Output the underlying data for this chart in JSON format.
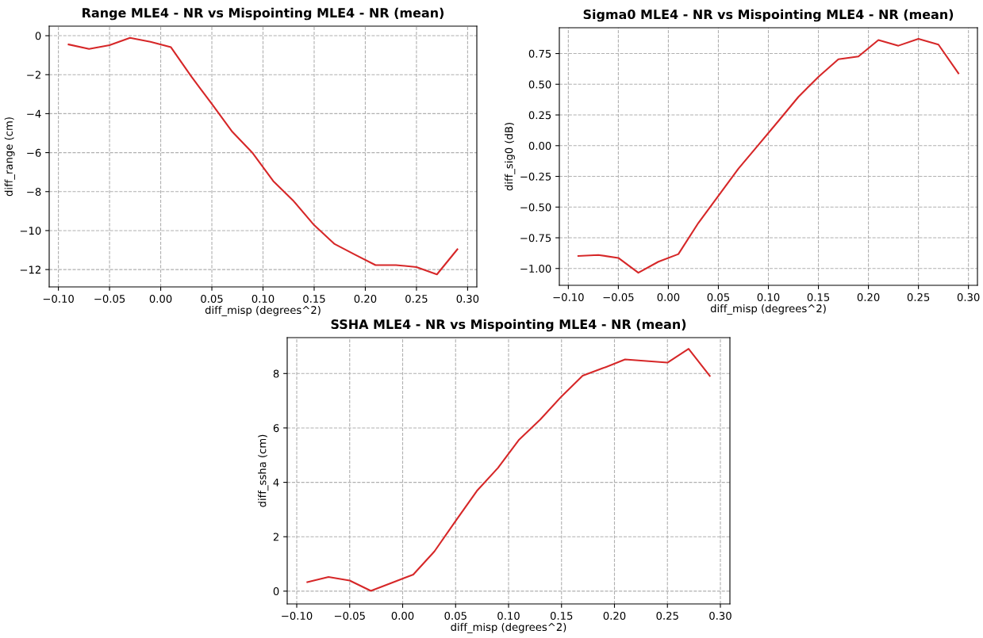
{
  "chart_data": [
    {
      "type": "line",
      "title": "Range MLE4 - NR vs Mispointing MLE4 - NR (mean)",
      "xlabel": "diff_misp (degrees^2)",
      "ylabel": "diff_range (cm)",
      "x": [
        -0.09,
        -0.07,
        -0.05,
        -0.03,
        -0.01,
        0.01,
        0.03,
        0.05,
        0.07,
        0.09,
        0.11,
        0.13,
        0.15,
        0.17,
        0.19,
        0.21,
        0.23,
        0.25,
        0.27,
        0.29
      ],
      "series": [
        {
          "color": "#d62728",
          "values": [
            -0.45,
            -0.68,
            -0.49,
            -0.11,
            -0.31,
            -0.59,
            -2.1,
            -3.5,
            -4.93,
            -6.03,
            -7.46,
            -8.49,
            -9.72,
            -10.69,
            -11.24,
            -11.77,
            -11.77,
            -11.87,
            -12.25,
            -10.96
          ]
        }
      ],
      "xlim": [
        -0.109,
        0.309
      ],
      "xticks": [
        {
          "value": -0.1,
          "label": "−0.10"
        },
        {
          "value": -0.05,
          "label": "−0.05"
        },
        {
          "value": 0.0,
          "label": "0.00"
        },
        {
          "value": 0.05,
          "label": "0.05"
        },
        {
          "value": 0.1,
          "label": "0.10"
        },
        {
          "value": 0.15,
          "label": "0.15"
        },
        {
          "value": 0.2,
          "label": "0.20"
        },
        {
          "value": 0.25,
          "label": "0.25"
        },
        {
          "value": 0.3,
          "label": "0.30"
        }
      ],
      "ylim": [
        -12.89,
        0.49
      ],
      "yticks": [
        {
          "value": -12,
          "label": "−12"
        },
        {
          "value": -10,
          "label": "−10"
        },
        {
          "value": -8,
          "label": "−8"
        },
        {
          "value": -6,
          "label": "−6"
        },
        {
          "value": -4,
          "label": "−4"
        },
        {
          "value": -2,
          "label": "−2"
        },
        0
      ],
      "grid": true,
      "line_style": "solid"
    },
    {
      "type": "line",
      "title": "Sigma0 MLE4 - NR vs Mispointing MLE4 - NR (mean)",
      "xlabel": "diff_misp (degrees^2)",
      "ylabel": "diff_sig0 (dB)",
      "x": [
        -0.09,
        -0.07,
        -0.05,
        -0.03,
        -0.01,
        0.01,
        0.03,
        0.05,
        0.07,
        0.09,
        0.11,
        0.13,
        0.15,
        0.17,
        0.19,
        0.21,
        0.23,
        0.25,
        0.27,
        0.29
      ],
      "series": [
        {
          "color": "#d62728",
          "values": [
            -0.898,
            -0.89,
            -0.914,
            -1.035,
            -0.945,
            -0.883,
            -0.629,
            -0.409,
            -0.188,
            0.006,
            0.2,
            0.397,
            0.56,
            0.703,
            0.726,
            0.86,
            0.814,
            0.869,
            0.823,
            0.589
          ]
        }
      ],
      "xlim": [
        -0.109,
        0.309
      ],
      "xticks": [
        {
          "value": -0.1,
          "label": "−0.10"
        },
        {
          "value": -0.05,
          "label": "−0.05"
        },
        {
          "value": 0.0,
          "label": "0.00"
        },
        {
          "value": 0.05,
          "label": "0.05"
        },
        {
          "value": 0.1,
          "label": "0.10"
        },
        {
          "value": 0.15,
          "label": "0.15"
        },
        {
          "value": 0.2,
          "label": "0.20"
        },
        {
          "value": 0.25,
          "label": "0.25"
        },
        {
          "value": 0.3,
          "label": "0.30"
        }
      ],
      "ylim": [
        -1.137,
        0.96
      ],
      "yticks": [
        {
          "value": -1.0,
          "label": "−1.00"
        },
        {
          "value": -0.75,
          "label": "−0.75"
        },
        {
          "value": -0.5,
          "label": "−0.50"
        },
        {
          "value": -0.25,
          "label": "−0.25"
        },
        {
          "value": 0.0,
          "label": "0.00"
        },
        {
          "value": 0.25,
          "label": "0.25"
        },
        {
          "value": 0.5,
          "label": "0.50"
        },
        {
          "value": 0.75,
          "label": "0.75"
        }
      ],
      "grid": true,
      "line_style": "solid"
    },
    {
      "type": "line",
      "title": "SSHA MLE4 - NR vs Mispointing MLE4 - NR (mean)",
      "xlabel": "diff_misp (degrees^2)",
      "ylabel": "diff_ssha (cm)",
      "x": [
        -0.09,
        -0.07,
        -0.05,
        -0.03,
        -0.01,
        0.01,
        0.03,
        0.05,
        0.07,
        0.09,
        0.11,
        0.13,
        0.15,
        0.17,
        0.19,
        0.21,
        0.23,
        0.25,
        0.27,
        0.29
      ],
      "series": [
        {
          "color": "#d62728",
          "values": [
            0.33,
            0.52,
            0.39,
            0.01,
            0.31,
            0.61,
            1.46,
            2.58,
            3.68,
            4.53,
            5.57,
            6.31,
            7.16,
            7.92,
            8.21,
            8.52,
            8.46,
            8.4,
            8.91,
            7.91
          ]
        }
      ],
      "xlim": [
        -0.109,
        0.309
      ],
      "xticks": [
        {
          "value": -0.1,
          "label": "−0.10"
        },
        {
          "value": -0.05,
          "label": "−0.05"
        },
        {
          "value": 0.0,
          "label": "0.00"
        },
        {
          "value": 0.05,
          "label": "0.05"
        },
        {
          "value": 0.1,
          "label": "0.10"
        },
        {
          "value": 0.15,
          "label": "0.15"
        },
        {
          "value": 0.2,
          "label": "0.20"
        },
        {
          "value": 0.25,
          "label": "0.25"
        },
        {
          "value": 0.3,
          "label": "0.30"
        }
      ],
      "ylim": [
        -0.47,
        9.32
      ],
      "yticks": [
        0,
        2,
        4,
        6,
        8
      ],
      "grid": true,
      "line_style": "solid"
    }
  ]
}
